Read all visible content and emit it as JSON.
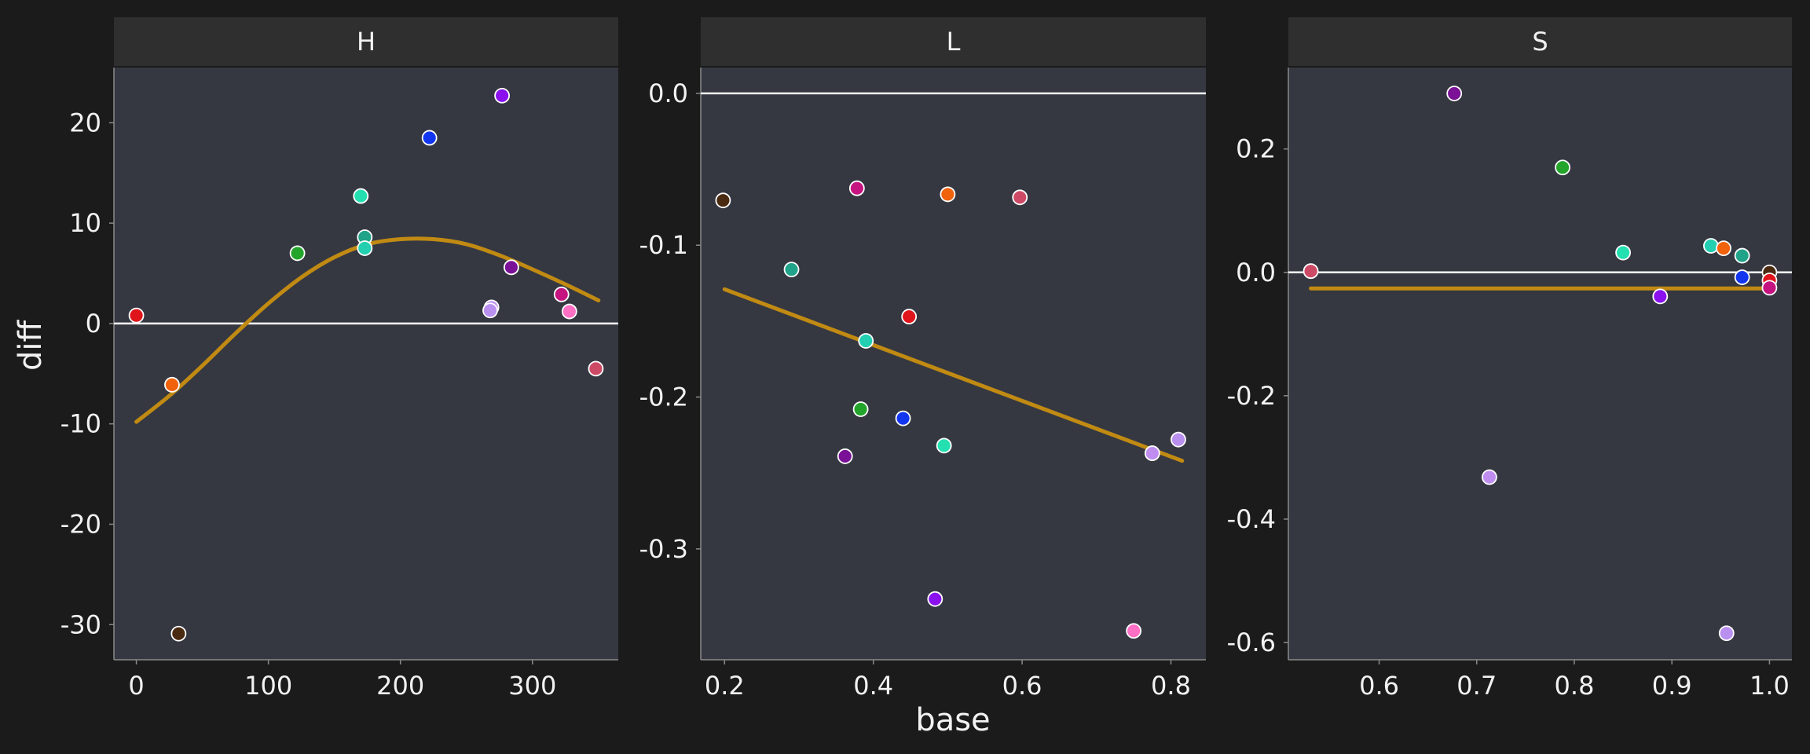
{
  "chart_data": {
    "type": "scatter",
    "xlabel": "base",
    "ylabel": "diff",
    "colors": {
      "background": "#1b1b1b",
      "panel": "#353841",
      "strip": "#2f2f2f",
      "reference_line": "#ffffff",
      "fit_line": "#c18a13"
    },
    "panels": [
      {
        "label": "H",
        "xlim": [
          -17,
          365
        ],
        "ylim": [
          -33.5,
          25.5
        ],
        "xticks": [
          0,
          100,
          200,
          300
        ],
        "yticks": [
          -30,
          -20,
          -10,
          0,
          10,
          20
        ],
        "reference_y": 0,
        "fit": {
          "x": [
            0,
            25,
            50,
            75,
            100,
            125,
            150,
            175,
            200,
            225,
            250,
            275,
            300,
            325,
            350
          ],
          "y": [
            -9.8,
            -7.2,
            -4.2,
            -1.0,
            2.0,
            4.6,
            6.6,
            7.9,
            8.4,
            8.4,
            7.9,
            6.8,
            5.4,
            3.9,
            2.3
          ]
        },
        "points": [
          {
            "x": 0,
            "y": 0.8,
            "color": "#e0141b"
          },
          {
            "x": 27,
            "y": -6.1,
            "color": "#f0620c"
          },
          {
            "x": 32,
            "y": -30.9,
            "color": "#4a2a10"
          },
          {
            "x": 122,
            "y": 7.0,
            "color": "#22a52a"
          },
          {
            "x": 170,
            "y": 12.7,
            "color": "#24dfb0"
          },
          {
            "x": 173,
            "y": 8.6,
            "color": "#21a38a"
          },
          {
            "x": 173,
            "y": 7.5,
            "color": "#22cfb0"
          },
          {
            "x": 222,
            "y": 18.5,
            "color": "#1236f0"
          },
          {
            "x": 277,
            "y": 22.7,
            "color": "#8a11ee"
          },
          {
            "x": 284,
            "y": 5.6,
            "color": "#7a1196"
          },
          {
            "x": 269,
            "y": 1.6,
            "color": "#bf8df0"
          },
          {
            "x": 268,
            "y": 1.3,
            "color": "#b98ff0"
          },
          {
            "x": 322,
            "y": 2.9,
            "color": "#c5137f"
          },
          {
            "x": 328,
            "y": 1.2,
            "color": "#ff6fc3"
          },
          {
            "x": 348,
            "y": -4.5,
            "color": "#cd4a66"
          }
        ]
      },
      {
        "label": "L",
        "xlim": [
          0.168,
          0.847
        ],
        "ylim": [
          -0.373,
          0.017
        ],
        "xticks": [
          0.2,
          0.4,
          0.6,
          0.8
        ],
        "yticks": [
          -0.3,
          -0.2,
          -0.1,
          0.0
        ],
        "tick_decimals": 1,
        "reference_y": 0,
        "fit": {
          "x": [
            0.2,
            0.815
          ],
          "y": [
            -0.129,
            -0.242
          ]
        },
        "points": [
          {
            "x": 0.198,
            "y": -0.0705,
            "color": "#4a2a10"
          },
          {
            "x": 0.29,
            "y": -0.116,
            "color": "#21a38a"
          },
          {
            "x": 0.378,
            "y": -0.0625,
            "color": "#c5137f"
          },
          {
            "x": 0.5,
            "y": -0.0665,
            "color": "#f0620c"
          },
          {
            "x": 0.597,
            "y": -0.0685,
            "color": "#cd4a66"
          },
          {
            "x": 0.448,
            "y": -0.147,
            "color": "#e0141b"
          },
          {
            "x": 0.39,
            "y": -0.163,
            "color": "#22cfb0"
          },
          {
            "x": 0.383,
            "y": -0.208,
            "color": "#22a52a"
          },
          {
            "x": 0.44,
            "y": -0.214,
            "color": "#1236f0"
          },
          {
            "x": 0.495,
            "y": -0.232,
            "color": "#24dfb0"
          },
          {
            "x": 0.362,
            "y": -0.239,
            "color": "#7a1196"
          },
          {
            "x": 0.483,
            "y": -0.333,
            "color": "#8a11ee"
          },
          {
            "x": 0.775,
            "y": -0.237,
            "color": "#bf8df0"
          },
          {
            "x": 0.81,
            "y": -0.228,
            "color": "#b98ff0"
          },
          {
            "x": 0.75,
            "y": -0.354,
            "color": "#ff6fc3"
          }
        ]
      },
      {
        "label": "S",
        "xlim": [
          0.507,
          1.023
        ],
        "ylim": [
          -0.628,
          0.332
        ],
        "xticks": [
          0.6,
          0.7,
          0.8,
          0.9,
          1.0
        ],
        "yticks": [
          -0.6,
          -0.4,
          -0.2,
          0.0,
          0.2
        ],
        "tick_decimals": 1,
        "reference_y": 0,
        "fit": {
          "x": [
            0.53,
            1.0
          ],
          "y": [
            -0.026,
            -0.026
          ]
        },
        "points": [
          {
            "x": 0.53,
            "y": 0.002,
            "color": "#cd4a66"
          },
          {
            "x": 0.677,
            "y": 0.29,
            "color": "#7a1196"
          },
          {
            "x": 0.713,
            "y": -0.332,
            "color": "#bf8df0"
          },
          {
            "x": 0.788,
            "y": 0.17,
            "color": "#22a52a"
          },
          {
            "x": 0.85,
            "y": 0.032,
            "color": "#24dfb0"
          },
          {
            "x": 0.888,
            "y": -0.039,
            "color": "#8a11ee"
          },
          {
            "x": 0.94,
            "y": 0.043,
            "color": "#22cfb0"
          },
          {
            "x": 0.953,
            "y": 0.039,
            "color": "#f0620c"
          },
          {
            "x": 0.972,
            "y": 0.027,
            "color": "#21a38a"
          },
          {
            "x": 0.972,
            "y": -0.008,
            "color": "#1236f0"
          },
          {
            "x": 0.956,
            "y": -0.585,
            "color": "#b98ff0"
          },
          {
            "x": 1.0,
            "y": 0.0,
            "color": "#4a2a10"
          },
          {
            "x": 1.0,
            "y": -0.013,
            "color": "#e0141b"
          },
          {
            "x": 1.0,
            "y": -0.025,
            "color": "#c5137f"
          }
        ]
      }
    ]
  }
}
